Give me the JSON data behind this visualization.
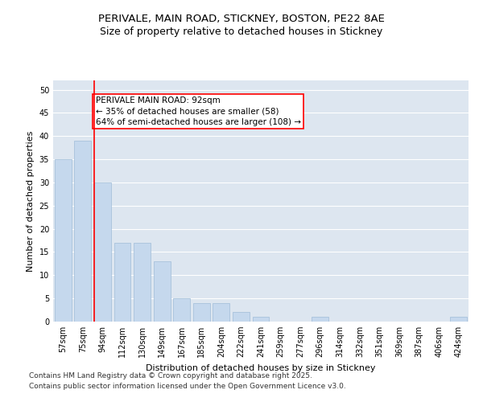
{
  "title_line1": "PERIVALE, MAIN ROAD, STICKNEY, BOSTON, PE22 8AE",
  "title_line2": "Size of property relative to detached houses in Stickney",
  "xlabel": "Distribution of detached houses by size in Stickney",
  "ylabel": "Number of detached properties",
  "categories": [
    "57sqm",
    "75sqm",
    "94sqm",
    "112sqm",
    "130sqm",
    "149sqm",
    "167sqm",
    "185sqm",
    "204sqm",
    "222sqm",
    "241sqm",
    "259sqm",
    "277sqm",
    "296sqm",
    "314sqm",
    "332sqm",
    "351sqm",
    "369sqm",
    "387sqm",
    "406sqm",
    "424sqm"
  ],
  "values": [
    35,
    39,
    30,
    17,
    17,
    13,
    5,
    4,
    4,
    2,
    1,
    0,
    0,
    1,
    0,
    0,
    0,
    0,
    0,
    0,
    1
  ],
  "bar_color": "#c5d8ed",
  "bar_edge_color": "#a0bcd8",
  "background_color": "#dde6f0",
  "grid_color": "#ffffff",
  "annotation_text": "PERIVALE MAIN ROAD: 92sqm\n← 35% of detached houses are smaller (58)\n64% of semi-detached houses are larger (108) →",
  "property_line_bin_index": 2,
  "ylim": [
    0,
    52
  ],
  "yticks": [
    0,
    5,
    10,
    15,
    20,
    25,
    30,
    35,
    40,
    45,
    50
  ],
  "footer_line1": "Contains HM Land Registry data © Crown copyright and database right 2025.",
  "footer_line2": "Contains public sector information licensed under the Open Government Licence v3.0.",
  "title_fontsize": 9.5,
  "subtitle_fontsize": 9,
  "axis_label_fontsize": 8,
  "tick_fontsize": 7,
  "annotation_fontsize": 7.5,
  "footer_fontsize": 6.5
}
